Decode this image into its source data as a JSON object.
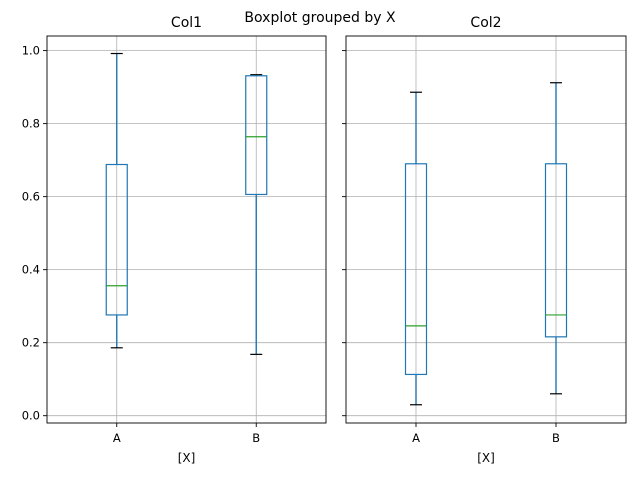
{
  "chart_data": {
    "type": "boxplot",
    "suptitle": "Boxplot grouped by X",
    "sharey": true,
    "ylim": [
      -0.02,
      1.04
    ],
    "yticks": [
      0.0,
      0.2,
      0.4,
      0.6,
      0.8,
      1.0
    ],
    "ytick_labels": [
      "0.0",
      "0.2",
      "0.4",
      "0.6",
      "0.8",
      "1.0"
    ],
    "grid": true,
    "colors": {
      "box": "#1f77b4",
      "median": "#2ca02c",
      "grid": "#b0b0b0",
      "cap": "#000000"
    },
    "panels": [
      {
        "title": "Col1",
        "xlabel": "[X]",
        "categories": [
          "A",
          "B"
        ],
        "boxes": [
          {
            "whisker_low": 0.186,
            "q1": 0.276,
            "median": 0.356,
            "q3": 0.688,
            "whisker_high": 0.992
          },
          {
            "whisker_low": 0.168,
            "q1": 0.606,
            "median": 0.764,
            "q3": 0.931,
            "whisker_high": 0.934
          }
        ]
      },
      {
        "title": "Col2",
        "xlabel": "[X]",
        "categories": [
          "A",
          "B"
        ],
        "boxes": [
          {
            "whisker_low": 0.03,
            "q1": 0.113,
            "median": 0.246,
            "q3": 0.69,
            "whisker_high": 0.886
          },
          {
            "whisker_low": 0.06,
            "q1": 0.216,
            "median": 0.276,
            "q3": 0.69,
            "whisker_high": 0.912
          }
        ]
      }
    ]
  }
}
